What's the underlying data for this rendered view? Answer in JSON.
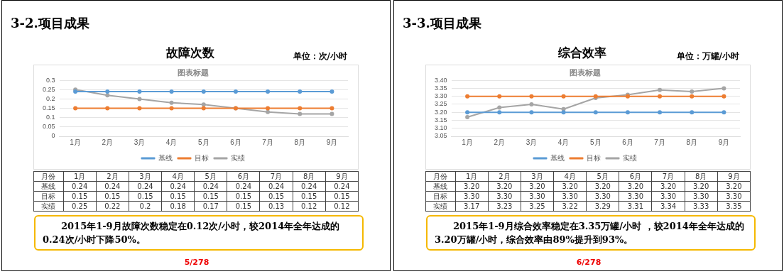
{
  "chart_data": [
    {
      "type": "line",
      "title": "故障次数",
      "categories": [
        "1月",
        "2月",
        "3月",
        "4月",
        "5月",
        "6月",
        "7月",
        "8月",
        "9月"
      ],
      "series": [
        {
          "name": "基线",
          "color": "#5b9bd5",
          "values": [
            0.24,
            0.24,
            0.24,
            0.24,
            0.24,
            0.24,
            0.24,
            0.24,
            0.24
          ],
          "value_labels": [
            "0.24",
            "0.24",
            "0.24",
            "0.24",
            "0.24",
            "0.24",
            "0.24",
            "0.24",
            "0.24"
          ]
        },
        {
          "name": "目标",
          "color": "#ed7d31",
          "values": [
            0.15,
            0.15,
            0.15,
            0.15,
            0.15,
            0.15,
            0.15,
            0.15,
            0.15
          ],
          "value_labels": [
            "0.15",
            "0.15",
            "0.15",
            "0.15",
            "0.15",
            "0.15",
            "0.15",
            "0.15",
            "0.15"
          ]
        },
        {
          "name": "实绩",
          "color": "#a5a5a5",
          "values": [
            0.25,
            0.22,
            0.2,
            0.18,
            0.17,
            0.15,
            0.13,
            0.12,
            0.12
          ],
          "value_labels": [
            "0.25",
            "0.22",
            "0.2",
            "0.18",
            "0.17",
            "0.15",
            "0.13",
            "0.12",
            "0.12"
          ]
        }
      ],
      "ylim": [
        0,
        0.3
      ],
      "yticks": [
        0,
        0.05,
        0.1,
        0.15,
        0.2,
        0.25,
        0.3
      ],
      "grid": "y",
      "legend": "bottom",
      "marker": "circle",
      "line_style": "solid",
      "annotations": [
        "3-2.项目成果",
        "单位：次/小时",
        "图表标题",
        "月份",
        "2015年1-9月故障次数稳定在0.12次/小时，较2014年全年达成的0.24次/小时下降50%。",
        "5/278"
      ]
    },
    {
      "type": "line",
      "title": "综合效率",
      "categories": [
        "1月",
        "2月",
        "3月",
        "4月",
        "5月",
        "6月",
        "7月",
        "8月",
        "9月"
      ],
      "series": [
        {
          "name": "基线",
          "color": "#5b9bd5",
          "values": [
            3.2,
            3.2,
            3.2,
            3.2,
            3.2,
            3.2,
            3.2,
            3.2,
            3.2
          ],
          "value_labels": [
            "3.20",
            "3.20",
            "3.20",
            "3.20",
            "3.20",
            "3.20",
            "3.20",
            "3.20",
            "3.20"
          ]
        },
        {
          "name": "目标",
          "color": "#ed7d31",
          "values": [
            3.3,
            3.3,
            3.3,
            3.3,
            3.3,
            3.3,
            3.3,
            3.3,
            3.3
          ],
          "value_labels": [
            "3.30",
            "3.30",
            "3.30",
            "3.30",
            "3.30",
            "3.30",
            "3.30",
            "3.30",
            "3.30"
          ]
        },
        {
          "name": "实绩",
          "color": "#a5a5a5",
          "values": [
            3.17,
            3.23,
            3.25,
            3.22,
            3.29,
            3.31,
            3.34,
            3.33,
            3.35
          ],
          "value_labels": [
            "3.17",
            "3.23",
            "3.25",
            "3.22",
            "3.29",
            "3.31",
            "3.34",
            "3.33",
            "3.35"
          ]
        }
      ],
      "ylim": [
        3.05,
        3.4
      ],
      "yticks": [
        3.05,
        {
          "value": 3.1,
          "label": "3.10"
        },
        3.15,
        {
          "value": 3.2,
          "label": "3.20"
        },
        3.25,
        {
          "value": 3.3,
          "label": "3.30"
        },
        3.35,
        {
          "value": 3.4,
          "label": "3.40"
        }
      ],
      "grid": "y",
      "legend": "bottom",
      "marker": "circle",
      "line_style": "solid",
      "annotations": [
        "3-3.项目成果",
        "单位：万罐/小时",
        "图表标题",
        "月份",
        "2015年1-9月综合效率稳定在3.35万罐/小时 ，较2014年全年达成的3.20万罐/小时，综合效率由89%提升到93%。",
        "6/278"
      ]
    }
  ]
}
